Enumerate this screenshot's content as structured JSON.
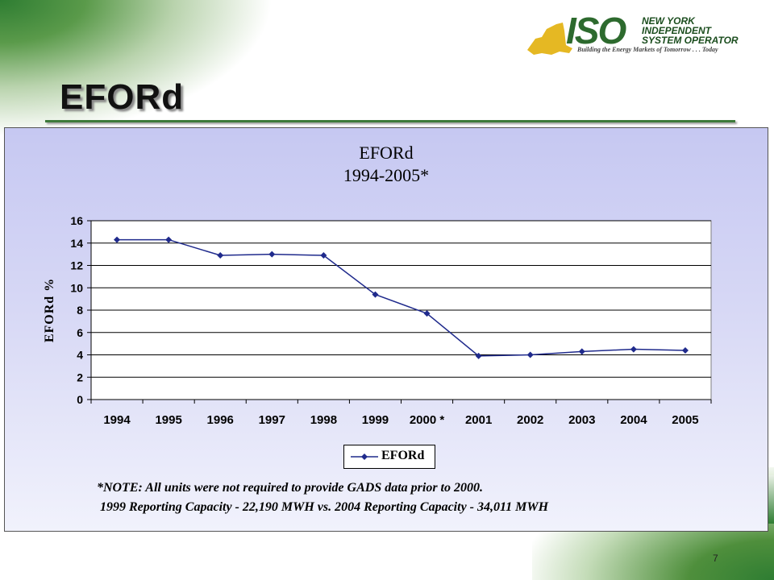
{
  "slide": {
    "title": "EFORd",
    "page_number": "7"
  },
  "logo": {
    "word": "ISO",
    "line1": "NEW YORK",
    "line2": "INDEPENDENT",
    "line3": "SYSTEM OPERATOR",
    "tagline": "Building the Energy Markets of Tomorrow . . . Today",
    "colors": {
      "green": "#2d6a2e",
      "gold": "#e5b823"
    }
  },
  "chart_data": {
    "type": "line",
    "title": "EFORd",
    "subtitle": "1994-2005*",
    "ylabel": "EFORd %",
    "xlabel": "",
    "categories": [
      "1994",
      "1995",
      "1996",
      "1997",
      "1998",
      "1999",
      "2000 *",
      "2001",
      "2002",
      "2003",
      "2004",
      "2005"
    ],
    "series": [
      {
        "name": "EFORd",
        "color": "#1f2a8c",
        "values": [
          14.3,
          14.3,
          12.9,
          13.0,
          12.9,
          9.4,
          7.7,
          3.9,
          4.0,
          4.3,
          4.5,
          4.4
        ]
      }
    ],
    "ylim": [
      0,
      16
    ],
    "yticks": [
      0,
      2,
      4,
      6,
      8,
      10,
      12,
      14,
      16
    ],
    "grid": true,
    "legend": "bottom",
    "marker": "diamond"
  },
  "notes": [
    "*NOTE: All units were not required to provide GADS data prior to 2000.",
    "1999 Reporting Capacity - 22,190 MWH vs. 2004 Reporting Capacity - 34,011 MWH"
  ]
}
